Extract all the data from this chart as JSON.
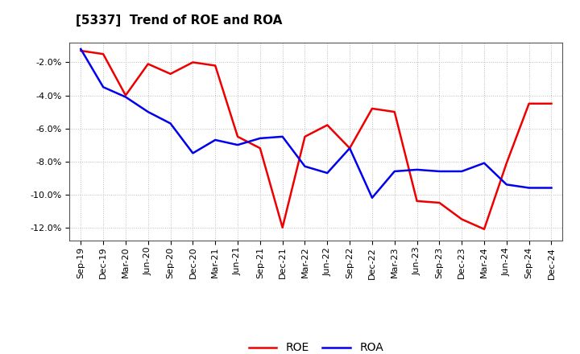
{
  "title": "[5337]  Trend of ROE and ROA",
  "x_labels": [
    "Sep-19",
    "Dec-19",
    "Mar-20",
    "Jun-20",
    "Sep-20",
    "Dec-20",
    "Mar-21",
    "Jun-21",
    "Sep-21",
    "Dec-21",
    "Mar-22",
    "Jun-22",
    "Sep-22",
    "Dec-22",
    "Mar-23",
    "Jun-23",
    "Sep-23",
    "Dec-23",
    "Mar-24",
    "Jun-24",
    "Sep-24",
    "Dec-24"
  ],
  "roe": [
    -1.3,
    -1.5,
    -4.0,
    -2.1,
    -2.7,
    -2.0,
    -2.2,
    -6.5,
    -7.2,
    -12.0,
    -6.5,
    -5.8,
    -7.2,
    -4.8,
    -5.0,
    -10.4,
    -10.5,
    -11.5,
    -12.1,
    -8.1,
    -4.5,
    -4.5
  ],
  "roa": [
    -1.2,
    -3.5,
    -4.1,
    -5.0,
    -5.7,
    -7.5,
    -6.7,
    -7.0,
    -6.6,
    -6.5,
    -8.3,
    -8.7,
    -7.2,
    -10.2,
    -8.6,
    -8.5,
    -8.6,
    -8.6,
    -8.1,
    -9.4,
    -9.6,
    -9.6
  ],
  "roe_color": "#ee0000",
  "roa_color": "#0000ee",
  "bg_color": "#ffffff",
  "plot_bg_color": "#ffffff",
  "ylim_min": -12.8,
  "ylim_max": -0.8,
  "yticks": [
    -2.0,
    -4.0,
    -6.0,
    -8.0,
    -10.0,
    -12.0
  ],
  "grid_color": "#bbbbbb",
  "line_width": 1.8,
  "title_fontsize": 11,
  "tick_fontsize": 8,
  "legend_fontsize": 10
}
